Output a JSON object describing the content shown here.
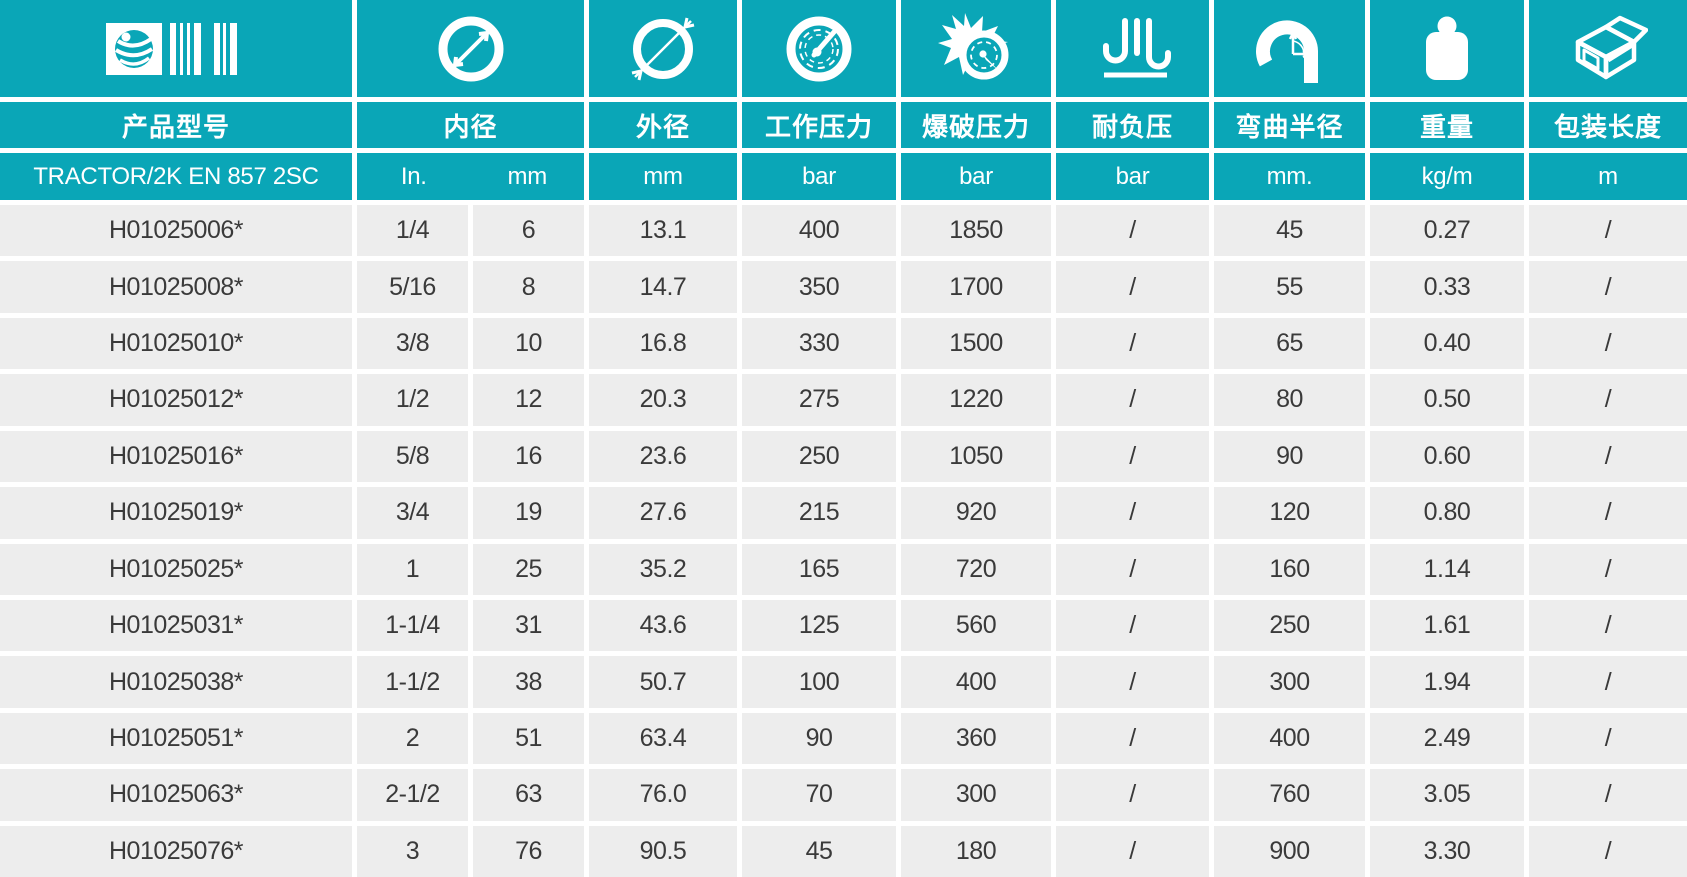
{
  "theme": {
    "teal": "#0AA6B7",
    "row_background": "#EDEDED",
    "text_color": "#3A3A3A",
    "header_text_color": "#FFFFFF",
    "gap_color": "#FFFFFF"
  },
  "table": {
    "series_name": "TRACTOR/2K EN 857 2SC",
    "columns": [
      {
        "id": "product_model",
        "label": "产品型号",
        "icon": "brand-barcode-icon"
      },
      {
        "id": "inner_diameter",
        "label": "内径",
        "icon": "inner-diameter-icon",
        "units": [
          "In.",
          "mm"
        ]
      },
      {
        "id": "outer_diameter",
        "label": "外径",
        "icon": "outer-diameter-icon",
        "unit": "mm"
      },
      {
        "id": "working_pressure",
        "label": "工作压力",
        "icon": "pressure-gauge-icon",
        "unit": "bar"
      },
      {
        "id": "burst_pressure",
        "label": "爆破压力",
        "icon": "burst-pressure-icon",
        "unit": "bar"
      },
      {
        "id": "vacuum_rating",
        "label": "耐负压",
        "icon": "vacuum-resistance-icon",
        "unit": "bar"
      },
      {
        "id": "bend_radius",
        "label": "弯曲半径",
        "icon": "bend-radius-icon",
        "unit": "mm."
      },
      {
        "id": "weight",
        "label": "重量",
        "icon": "weight-icon",
        "unit": "kg/m"
      },
      {
        "id": "package_length",
        "label": "包装长度",
        "icon": "package-box-icon",
        "unit": "m"
      }
    ],
    "rows": [
      [
        "H01025006*",
        "1/4",
        "6",
        "13.1",
        "400",
        "1850",
        "/",
        "45",
        "0.27",
        "/"
      ],
      [
        "H01025008*",
        "5/16",
        "8",
        "14.7",
        "350",
        "1700",
        "/",
        "55",
        "0.33",
        "/"
      ],
      [
        "H01025010*",
        "3/8",
        "10",
        "16.8",
        "330",
        "1500",
        "/",
        "65",
        "0.40",
        "/"
      ],
      [
        "H01025012*",
        "1/2",
        "12",
        "20.3",
        "275",
        "1220",
        "/",
        "80",
        "0.50",
        "/"
      ],
      [
        "H01025016*",
        "5/8",
        "16",
        "23.6",
        "250",
        "1050",
        "/",
        "90",
        "0.60",
        "/"
      ],
      [
        "H01025019*",
        "3/4",
        "19",
        "27.6",
        "215",
        "920",
        "/",
        "120",
        "0.80",
        "/"
      ],
      [
        "H01025025*",
        "1",
        "25",
        "35.2",
        "165",
        "720",
        "/",
        "160",
        "1.14",
        "/"
      ],
      [
        "H01025031*",
        "1-1/4",
        "31",
        "43.6",
        "125",
        "560",
        "/",
        "250",
        "1.61",
        "/"
      ],
      [
        "H01025038*",
        "1-1/2",
        "38",
        "50.7",
        "100",
        "400",
        "/",
        "300",
        "1.94",
        "/"
      ],
      [
        "H01025051*",
        "2",
        "51",
        "63.4",
        "90",
        "360",
        "/",
        "400",
        "2.49",
        "/"
      ],
      [
        "H01025063*",
        "2-1/2",
        "63",
        "76.0",
        "70",
        "300",
        "/",
        "760",
        "3.05",
        "/"
      ],
      [
        "H01025076*",
        "3",
        "76",
        "90.5",
        "45",
        "180",
        "/",
        "900",
        "3.30",
        "/"
      ]
    ]
  }
}
